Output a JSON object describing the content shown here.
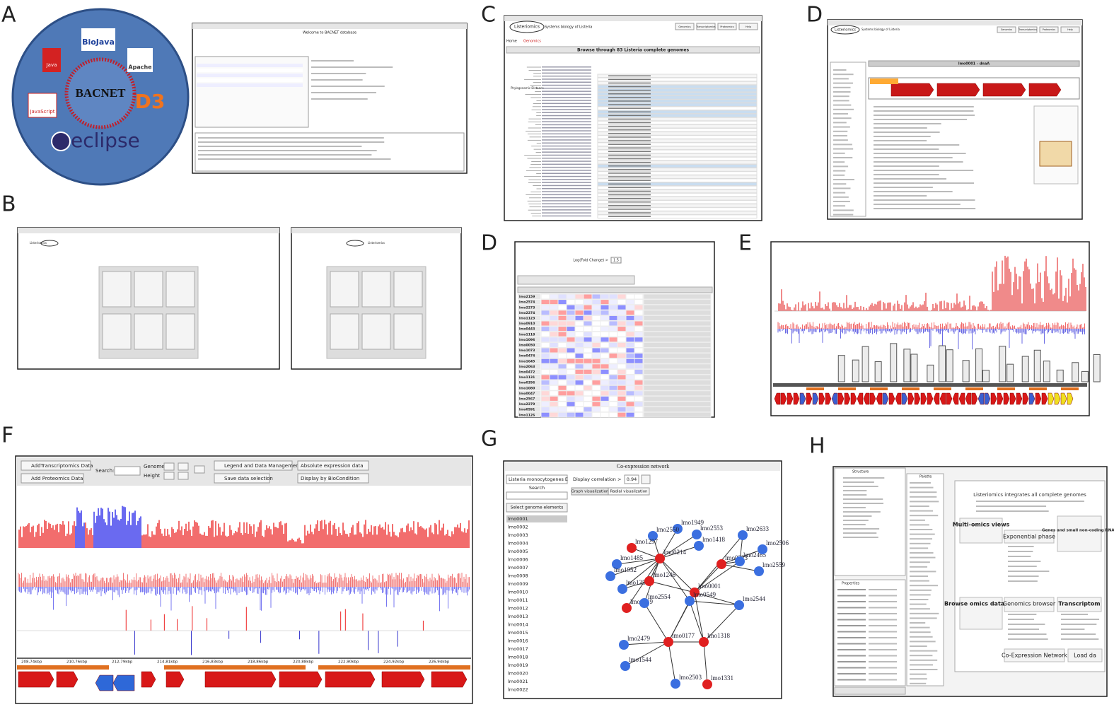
{
  "panel_labels": [
    "A",
    "B",
    "C",
    "D",
    "D",
    "E",
    "F",
    "G",
    "H"
  ],
  "panel_a": {
    "logos": [
      "BioJava",
      "Java",
      "Apache",
      "JavaScript",
      "BACNET",
      "eclipse",
      "D3"
    ],
    "window_title": "Welcome to BACNET database"
  },
  "panel_b": {
    "app_name": "Listeriomics",
    "center_title": "Listeriomics"
  },
  "panel_c": {
    "app_name": "Listeriomics",
    "subtitle": "Systems biology of Listeria",
    "header_buttons": [
      "Genomics",
      "Transcriptomics",
      "Proteomics",
      "Help"
    ],
    "tabs": [
      "Home",
      "Genomics"
    ],
    "table_title": "Browse through 83 Listeria complete genomes",
    "tree_label": "Phylogenomic Distance"
  },
  "panel_d_top": {
    "app_name": "Listeriomics",
    "subtitle": "Systems biology of Listeria",
    "header_buttons": [
      "Genomics",
      "Transcriptomics",
      "Proteomics",
      "Help"
    ],
    "gene_title": "lmo0001 - dnaA"
  },
  "panel_d_bottom": {
    "fold_change_label": "Log(Fold Change) >",
    "fold_change_value": "1.5",
    "genes": [
      "lmo2159",
      "lmo2574",
      "lmo2273",
      "lmo2274",
      "lmo1123",
      "lmo0910",
      "lmo0443",
      "lmo1118",
      "lmo1096",
      "lmo0050",
      "lmo1073",
      "lmo0474",
      "lmo1645",
      "lmo2063",
      "lmo0472",
      "lmo1131",
      "lmo0356",
      "lmo1080",
      "lmo0047",
      "lmo2567",
      "lmo2279",
      "lmo0591",
      "lmo1126"
    ]
  },
  "panel_f": {
    "buttons": [
      "AddTranscriptomics Data",
      "Add Proteomics Data",
      "Legend and Data Management",
      "Save data selection"
    ],
    "search_label": "Search:",
    "genome_label": "Genome",
    "height_label": "Height",
    "dropdowns": [
      "Absolute expression data",
      "Display by BioCondition"
    ],
    "ruler": [
      "208,74kbp",
      "210,76kbp",
      "212,79kbp",
      "214,81kbp",
      "216,83kbp",
      "218,86kbp",
      "220,88kbp",
      "222,90kbp",
      "224,92kbp",
      "226,94kbp"
    ]
  },
  "panel_g": {
    "title": "Co-expression network",
    "genome": "Listeria monocytogenes E",
    "search": "Search",
    "select_button": "Select genome elements",
    "corr_label": "Display correlation >",
    "corr_value": "0.94",
    "tabs": [
      "Graph visualization",
      "Radial visualization"
    ],
    "genes": [
      "lmo0001",
      "lmo0002",
      "lmo0003",
      "lmo0004",
      "lmo0005",
      "lmo0006",
      "lmo0007",
      "lmo0008",
      "lmo0009",
      "lmo0010",
      "lmo0011",
      "lmo0012",
      "lmo0013",
      "lmo0014",
      "lmo0015",
      "lmo0016",
      "lmo0017",
      "lmo0018",
      "lmo0019",
      "lmo0020",
      "lmo0021",
      "lmo0022"
    ],
    "nodes": [
      {
        "label": "lmo1949",
        "color": "#3b6fe0"
      },
      {
        "label": "lmo2553",
        "color": "#3b6fe0"
      },
      {
        "label": "lmo2633",
        "color": "#3b6fe0"
      },
      {
        "label": "lmo2550",
        "color": "#3b6fe0"
      },
      {
        "label": "lmo1297",
        "color": "#e02020"
      },
      {
        "label": "lmo1418",
        "color": "#3b6fe0"
      },
      {
        "label": "lmo1485",
        "color": "#3b6fe0"
      },
      {
        "label": "lmo0214",
        "color": "#e02020"
      },
      {
        "label": "lmo0223",
        "color": "#e02020"
      },
      {
        "label": "lmo2465",
        "color": "#3b6fe0"
      },
      {
        "label": "lmo2506",
        "color": "#3b6fe0"
      },
      {
        "label": "lmo2559",
        "color": "#3b6fe0"
      },
      {
        "label": "lmo1952",
        "color": "#3b6fe0"
      },
      {
        "label": "lmo1353",
        "color": "#3b6fe0"
      },
      {
        "label": "lmo1246",
        "color": "#e02020"
      },
      {
        "label": "lmo1319",
        "color": "#e02020"
      },
      {
        "label": "lmo0001",
        "color": "#e02020"
      },
      {
        "label": "lmo0549",
        "color": "#3b6fe0"
      },
      {
        "label": "lmo2544",
        "color": "#3b6fe0"
      },
      {
        "label": "lmo2554",
        "color": "#3b6fe0"
      },
      {
        "label": "lmo0177",
        "color": "#e02020"
      },
      {
        "label": "lmo1318",
        "color": "#e02020"
      },
      {
        "label": "lmo2479",
        "color": "#3b6fe0"
      },
      {
        "label": "lmo1544",
        "color": "#3b6fe0"
      },
      {
        "label": "lmo2503",
        "color": "#3b6fe0"
      },
      {
        "label": "lmo1331",
        "color": "#e02020"
      }
    ]
  },
  "panel_h": {
    "tabs": [
      "Structure",
      "Palette",
      "Properties"
    ],
    "intro": "Listeriomics integrates all complete genomes",
    "boxes": [
      "Multi-omics views",
      "Exponential phase",
      "Genes and small non-coding RNAs",
      "Browse omics datasets",
      "Genomics browser",
      "Transcriptom",
      "Co-Expression Network",
      "Load da"
    ]
  }
}
